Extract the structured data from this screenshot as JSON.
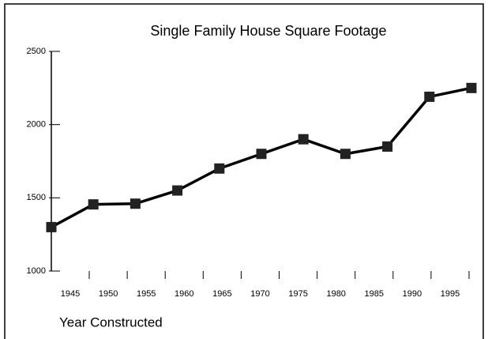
{
  "chart_data": {
    "type": "line",
    "title": "Single Family House Square Footage",
    "x_label": "Year Constructed",
    "categories": [
      "1945",
      "1950",
      "1955",
      "1960",
      "1965",
      "1970",
      "1975",
      "1980",
      "1985",
      "1990",
      "1995"
    ],
    "series": [
      {
        "name": null,
        "color": "#000000",
        "values": [
          1300,
          1455,
          1460,
          1550,
          1700,
          1800,
          1900,
          1800,
          1850,
          2190,
          2250
        ]
      }
    ],
    "ylim": [
      1000,
      2500
    ],
    "yticks": [
      1000,
      1500,
      2000,
      2500
    ],
    "grid": false
  }
}
